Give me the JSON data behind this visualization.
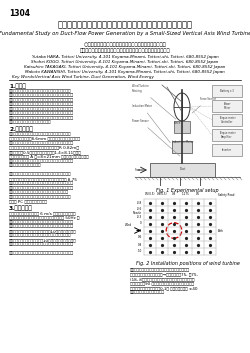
{
  "page_number": "1304",
  "title_ja": "小型垂直軸風車によるダクト排気流発電に関する基礎的研究",
  "title_en": "Fundamental Study on Duct-Flow Power Generation by a Small-Sized Vertical Axis Wind Turbine",
  "author_line1": "○正　員　著（鳥取大）、　学　古積　科平（鳥取大院）",
  "author_line2": "　学　高垣　健大（鳥取大院）、　学　川西　誠（鳥取大４年）",
  "author_en1": "Yutaka HARA, Tottori University, 4-101 Koyama-Minami, Tottori-shi, Tottori, 680-8552 Japan",
  "author_en2": "Shohei KOGO, Tottori University, 4-101 Koyama-Minami, Tottori-shi, Tottori, 680-8552 Japan",
  "author_en3": "Katsuhiro TAKAGAKI, Tottori University, 4-101 Koyama-Minami, Tottori-shi, Tottori, 680-8552 Japan",
  "author_en4": "Makoto KAWANISHI, Tottori University, 4-101 Koyama-Minami, Tottori-shi, Tottori, 680-8552 Japan",
  "keywords_label": "Key Words",
  "keywords_text": "Vertical Axis Wind Turbine, Duct Generation, Wind Energy",
  "s1_title": "1.　緒言",
  "s1_body": [
    "近年省エネルギーや環境負荷低減のためのダクトに排気",
    "力を利用する省エネルギーシステムについての研究が存在",
    "する。しかし、排気ダクトを活用する研究が未だなないの",
    "が現状である。本研究では、排気ダクトの活用によって発",
    "電機能を付加し、最近の（屋根設置など）小さな風車を娪",
    "内に置くことで風量条件と前後比較の実験を行った。風車",
    "試験設置と垂直風流発生システムとの組合の関係を確認に",
    "し、ダクト管置の有効性を検証する。"
  ],
  "s2_title": "2.　実験装置",
  "s2_body": [
    "本研究で使用した実験装置の概要図を図１に示す。排気",
    "ダクトとして、一辺8.6mm の正方形ノズルを有した垂直",
    "型風発電に使い、試験風車は、キャンバー翄を持ったパラ",
    "フォイル翄とした。風車ローターの最大半径R 0.82m、",
    "マーク部分は0.5ｍ以上です。投影面積1.4×8.11㎡であ",
    "る。測定時の台関 A に=8×21mm とする管理範囲が大きい",
    "と言えず。通過風速ローターの回転の影響についての文献",
    "には多用事にて書き行った。",
    "",
    "　図１に示すよう、試験風車をスーパーフランジで設備",
    "に参照し、トルク風況測の多機器に試験環境（規模 8.75",
    "倍に設置して一連変更に問われる。磁気特性を設置する意",
    "向に、振動特性を参照するデータを段階として一連を設置",
    "し風機会を設置した。風車のトルク、回転数、および",
    "トルク管理設置の回転が参照し、各電発機磁センサーを",
    "用いて PC においているいる。"
  ],
  "s3_title": "3.　測定方法",
  "s3_body": [
    "本研究では、基準風速度を 6 m/s として、サベイの試",
    "験においく、風況設置機のインバーター周波数を 50Hz に",
    "設定した。試験には印象高さと風機ローターの設置位置の",
    "設計であり、初出によって先端の位置を変えていた回転時",
    "特性比試験し、主、及び前後での計は10秒では出力した。",
    "その位置による出力の変化によって風機回転特性の周値",
    "チェックデータついている計は10秒でティス。以下の考察",
    "でも、基準特性については複数の全設置の中央を用いる。",
    "",
    "　上記の風車特性の評価とし、先行調査の中心座のみの実"
  ],
  "fig1_caption": "Fig. 1 Experimental setup",
  "fig2_caption": "Fig. 2 Installation positions of wind turbine",
  "fig2_extra": [
    "過表を利用した。これより以下について、風車を置く",
    "有した試験モデルを比べ、外→後の八角、前75, 後75,",
    "(18, 8前のカ後等の参比要に設定した比較で、ヒトー",
    "草を最終的な90 複数の中で掃除して、風速を自動し、",
    "そのヒトー草の移動位置は0.1ｍ とし、もの一段 ±40",
    "点の設定で風速計測を行った。"
  ],
  "bg_color": "#ffffff",
  "text_color": "#000000"
}
